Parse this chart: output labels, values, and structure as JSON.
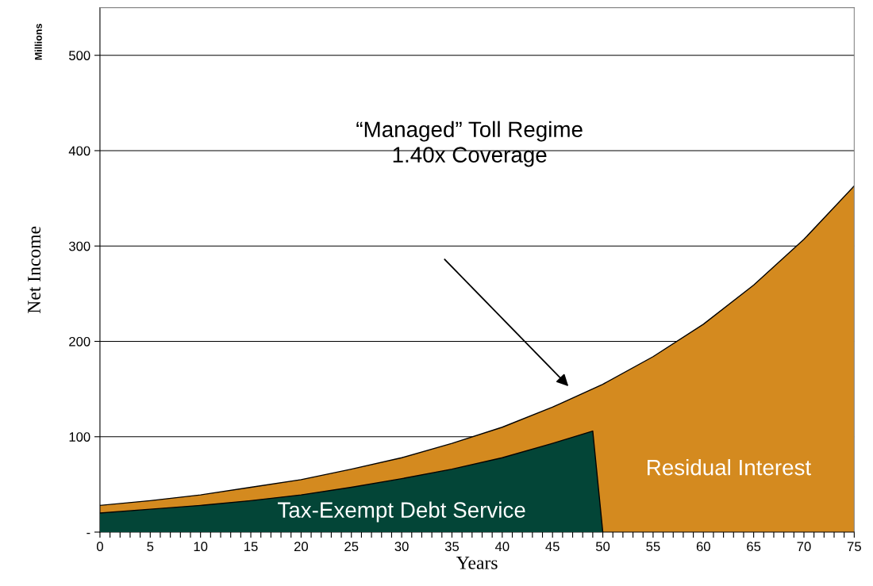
{
  "chart_data": {
    "type": "area",
    "xlabel": "Years",
    "ylabel": "Net Income",
    "series": [
      {
        "name": "Residual Interest",
        "color": "#d48a1f",
        "x": [
          0,
          5,
          10,
          15,
          20,
          25,
          30,
          35,
          40,
          45,
          50,
          55,
          60,
          65,
          70,
          75
        ],
        "values": [
          28,
          33,
          39,
          47,
          55,
          66,
          78,
          93,
          110,
          131,
          155,
          184,
          218,
          259,
          307,
          363
        ]
      },
      {
        "name": "Tax-Exempt Debt Service",
        "color": "#034537",
        "x": [
          0,
          5,
          10,
          15,
          20,
          25,
          30,
          35,
          40,
          45,
          49,
          50
        ],
        "values": [
          20,
          24,
          28,
          33,
          39,
          47,
          56,
          66,
          78,
          93,
          106,
          0
        ]
      }
    ],
    "annotations": [
      "“Managed” Toll Regime\n1.40x Coverage",
      "Millions"
    ],
    "xlim": [
      0,
      75
    ],
    "ylim": [
      0,
      550
    ],
    "xticks": [
      0,
      {
        "value": 1,
        "label": null
      },
      {
        "value": 2,
        "label": null
      },
      {
        "value": 3,
        "label": null
      },
      {
        "value": 4,
        "label": null
      },
      5,
      {
        "value": 6,
        "label": null
      },
      {
        "value": 7,
        "label": null
      },
      {
        "value": 8,
        "label": null
      },
      {
        "value": 9,
        "label": null
      },
      10,
      {
        "value": 11,
        "label": null
      },
      {
        "value": 12,
        "label": null
      },
      {
        "value": 13,
        "label": null
      },
      {
        "value": 14,
        "label": null
      },
      15,
      {
        "value": 16,
        "label": null
      },
      {
        "value": 17,
        "label": null
      },
      {
        "value": 18,
        "label": null
      },
      {
        "value": 19,
        "label": null
      },
      20,
      {
        "value": 21,
        "label": null
      },
      {
        "value": 22,
        "label": null
      },
      {
        "value": 23,
        "label": null
      },
      {
        "value": 24,
        "label": null
      },
      25,
      {
        "value": 26,
        "label": null
      },
      {
        "value": 27,
        "label": null
      },
      {
        "value": 28,
        "label": null
      },
      {
        "value": 29,
        "label": null
      },
      30,
      {
        "value": 31,
        "label": null
      },
      {
        "value": 32,
        "label": null
      },
      {
        "value": 33,
        "label": null
      },
      {
        "value": 34,
        "label": null
      },
      35,
      {
        "value": 36,
        "label": null
      },
      {
        "value": 37,
        "label": null
      },
      {
        "value": 38,
        "label": null
      },
      {
        "value": 39,
        "label": null
      },
      40,
      {
        "value": 41,
        "label": null
      },
      {
        "value": 42,
        "label": null
      },
      {
        "value": 43,
        "label": null
      },
      {
        "value": 44,
        "label": null
      },
      45,
      {
        "value": 46,
        "label": null
      },
      {
        "value": 47,
        "label": null
      },
      {
        "value": 48,
        "label": null
      },
      {
        "value": 49,
        "label": null
      },
      50,
      {
        "value": 51,
        "label": null
      },
      {
        "value": 52,
        "label": null
      },
      {
        "value": 53,
        "label": null
      },
      {
        "value": 54,
        "label": null
      },
      55,
      {
        "value": 56,
        "label": null
      },
      {
        "value": 57,
        "label": null
      },
      {
        "value": 58,
        "label": null
      },
      {
        "value": 59,
        "label": null
      },
      60,
      {
        "value": 61,
        "label": null
      },
      {
        "value": 62,
        "label": null
      },
      {
        "value": 63,
        "label": null
      },
      {
        "value": 64,
        "label": null
      },
      65,
      {
        "value": 66,
        "label": null
      },
      {
        "value": 67,
        "label": null
      },
      {
        "value": 68,
        "label": null
      },
      {
        "value": 69,
        "label": null
      },
      70,
      {
        "value": 71,
        "label": null
      },
      {
        "value": 72,
        "label": null
      },
      {
        "value": 73,
        "label": null
      },
      {
        "value": 74,
        "label": null
      },
      75
    ],
    "yticks": [
      {
        "value": 0,
        "label": "-"
      },
      100,
      200,
      300,
      400,
      500
    ],
    "grid": "y",
    "legend": false
  }
}
